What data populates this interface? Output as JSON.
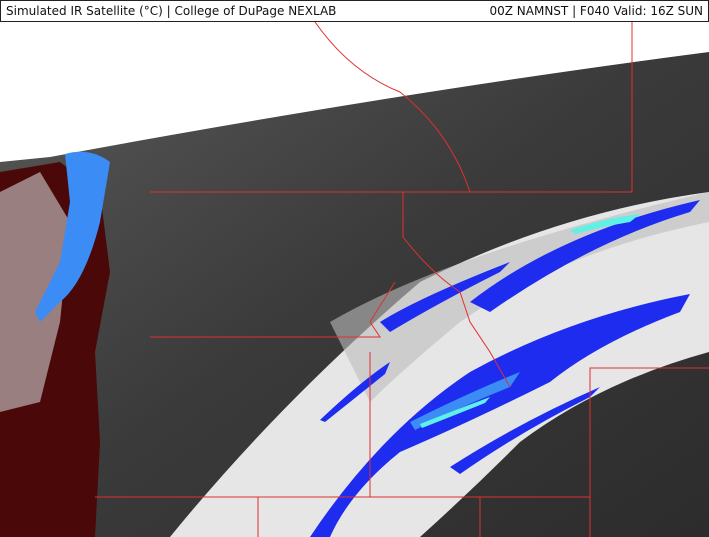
{
  "header": {
    "product_title": "Simulated IR Satellite (°C) | College of DuPage NEXLAB",
    "run_info": "00Z NAMNST | F040 Valid: 16Z SUN"
  },
  "colors": {
    "no_data": "#ffffff",
    "warm_land": "#3a3a3a",
    "cloud_bright": "#f0f0f0",
    "cold_blue": "#1e2cf0",
    "colder_blue": "#3c8cf5",
    "coldest_cyan": "#5ff0e8",
    "very_warm_red": "#5a0a0a",
    "border_red": "#e03030"
  }
}
